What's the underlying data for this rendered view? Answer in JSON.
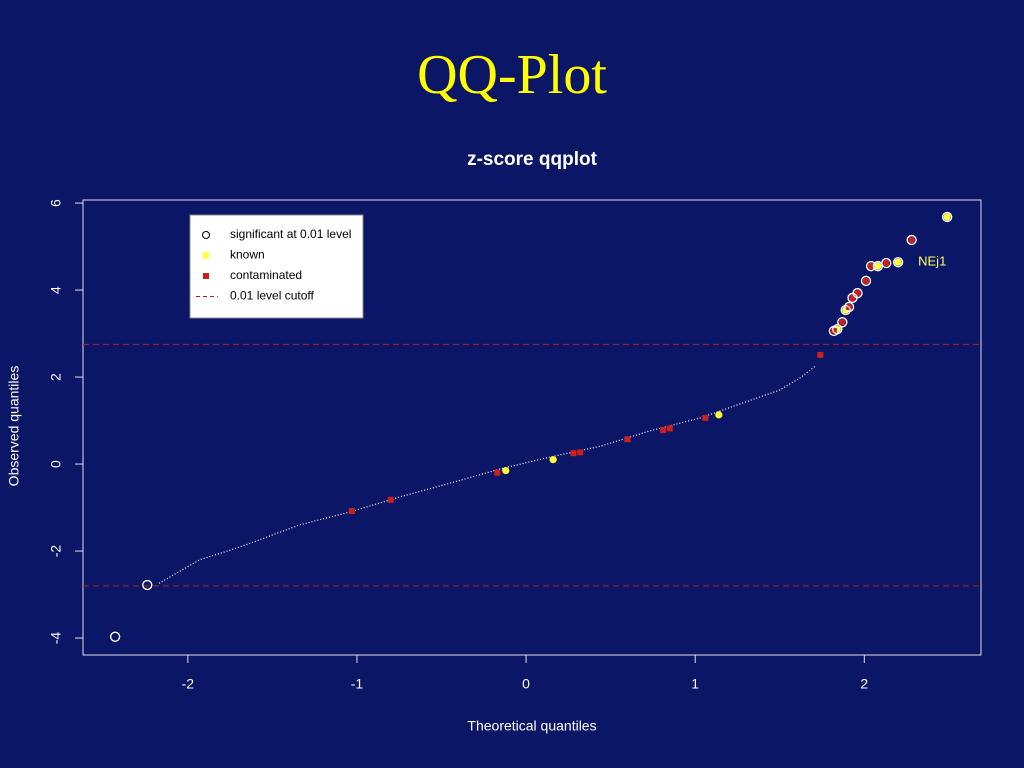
{
  "slide_title": "QQ-Plot",
  "chart_data": {
    "type": "scatter",
    "title": "z-score qqplot",
    "x_label": "Theoretical quantiles",
    "y_label": "Observed quantiles",
    "xlim": [
      -2.62,
      2.69
    ],
    "ylim": [
      -4.39,
      6.07
    ],
    "xticks": [
      -2,
      -1,
      0,
      1,
      2
    ],
    "yticks": [
      -4,
      -2,
      0,
      2,
      4,
      6
    ],
    "legend": "top-left",
    "series": [
      {
        "color": "#ffffff",
        "marker": "line",
        "x": [
          -2.17,
          -1.93,
          -1.75,
          -1.63,
          -1.34,
          -1.04,
          -0.75,
          -0.45,
          -0.15,
          0.14,
          0.44,
          0.73,
          1.03,
          1.33,
          1.5,
          1.62,
          1.71
        ],
        "values": [
          -2.74,
          -2.2,
          -1.98,
          -1.82,
          -1.4,
          -1.1,
          -0.76,
          -0.44,
          -0.11,
          0.16,
          0.41,
          0.76,
          1.06,
          1.47,
          1.7,
          1.98,
          2.25
        ]
      },
      {
        "name": "significant at 0.01 level",
        "color": "#ffffff",
        "marker": "open-circle",
        "x": [
          -2.43,
          -2.24,
          1.82,
          1.84,
          1.87,
          1.89,
          1.91,
          1.93,
          1.96,
          2.01,
          2.04,
          2.08,
          2.13,
          2.2,
          2.28,
          2.49
        ],
        "values": [
          -3.97,
          -2.78,
          3.06,
          3.1,
          3.26,
          3.54,
          3.61,
          3.82,
          3.93,
          4.21,
          4.55,
          4.55,
          4.62,
          4.64,
          5.15,
          5.68
        ]
      },
      {
        "name": "known",
        "color": "#ffff33",
        "marker": "circle",
        "x": [
          -0.12,
          0.16,
          1.14,
          1.84,
          1.89,
          2.08,
          2.2,
          2.49
        ],
        "values": [
          -0.15,
          0.1,
          1.13,
          3.1,
          3.54,
          4.55,
          4.64,
          5.68
        ]
      },
      {
        "name": "contaminated",
        "color": "#cc2020",
        "marker": "square",
        "x": [
          -1.03,
          -0.8,
          -0.17,
          0.28,
          0.32,
          0.6,
          0.81,
          0.85,
          1.06,
          1.74,
          1.82,
          1.87,
          1.91,
          1.93,
          1.96,
          2.01,
          2.04,
          2.13,
          2.28
        ],
        "values": [
          -1.08,
          -0.82,
          -0.2,
          0.25,
          0.27,
          0.57,
          0.78,
          0.82,
          1.06,
          2.51,
          3.06,
          3.26,
          3.61,
          3.82,
          3.93,
          4.21,
          4.55,
          4.62,
          5.15
        ]
      }
    ],
    "hlines": {
      "name": "0.01 level cutoff",
      "color": "#b22222",
      "values": [
        2.75,
        -2.8
      ]
    },
    "annotations": [
      {
        "text": "NEj1",
        "x": 2.2,
        "y": 4.64
      }
    ]
  }
}
